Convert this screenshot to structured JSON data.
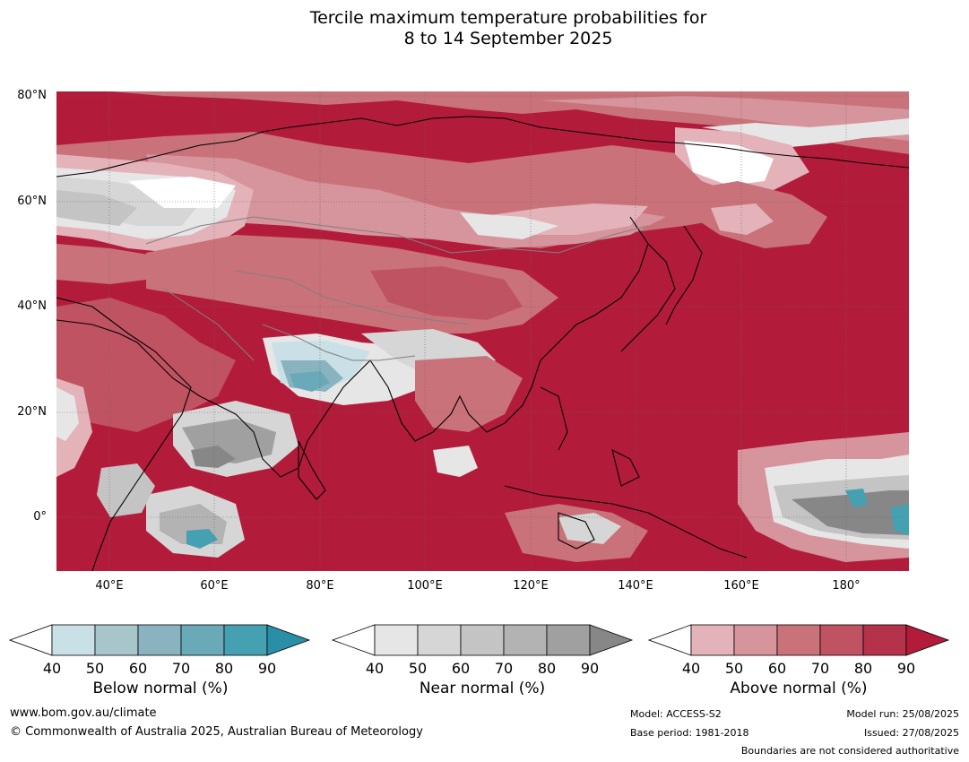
{
  "title": [
    "Tercile maximum temperature probabilities for",
    "8 to 14 September 2025"
  ],
  "lat_labels": [
    "80°N",
    "60°N",
    "40°N",
    "20°N",
    "0°"
  ],
  "lon_labels": [
    "40°E",
    "60°E",
    "80°E",
    "100°E",
    "120°E",
    "140°E",
    "160°E",
    "180°"
  ],
  "colorbars": [
    {
      "label": "Below normal (%)",
      "ticks": [
        "40",
        "50",
        "60",
        "70",
        "80",
        "90"
      ],
      "colors": [
        "#ffffff",
        "#c8e0e6",
        "#a6c6cc",
        "#89b3bf",
        "#6aaab8",
        "#45a0b2",
        "#2a8fa6"
      ]
    },
    {
      "label": "Near normal (%)",
      "ticks": [
        "40",
        "50",
        "60",
        "70",
        "80",
        "90"
      ],
      "colors": [
        "#ffffff",
        "#e6e6e6",
        "#d6d6d6",
        "#c4c4c4",
        "#b3b3b3",
        "#a0a0a0",
        "#878787"
      ]
    },
    {
      "label": "Above normal (%)",
      "ticks": [
        "40",
        "50",
        "60",
        "70",
        "80",
        "90"
      ],
      "colors": [
        "#ffffff",
        "#e3b3b9",
        "#d6949c",
        "#c97279",
        "#bf5362",
        "#b5334a",
        "#b21c3a"
      ]
    }
  ],
  "footer": {
    "website": "www.bom.gov.au/climate",
    "copyright": "© Commonwealth of Australia 2025, Australian Bureau of Meteorology",
    "model": "Model: ACCESS-S2",
    "base_period": "Base period: 1981-2018",
    "model_run": "Model run: 25/08/2025",
    "issued": "Issued: 27/08/2025",
    "boundaries": "Boundaries are not considered authoritative"
  }
}
